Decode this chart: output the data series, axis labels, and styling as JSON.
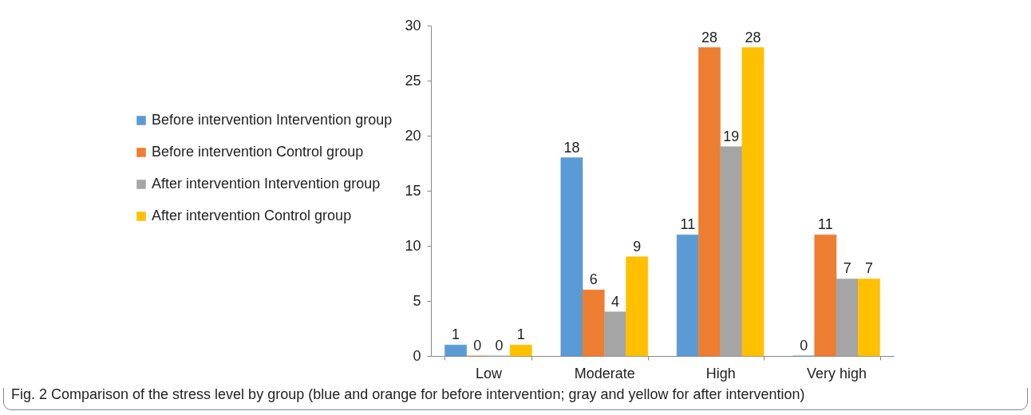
{
  "chart_data": {
    "type": "bar",
    "categories": [
      "Low",
      "Moderate",
      "High",
      "Very high"
    ],
    "series": [
      {
        "name": "Before intervention Intervention group",
        "color": "#5b9bd5",
        "values": [
          1,
          18,
          11,
          0
        ]
      },
      {
        "name": "Before intervention Control group",
        "color": "#ed7d31",
        "values": [
          0,
          6,
          28,
          11
        ]
      },
      {
        "name": "After intervention Intervention group",
        "color": "#a5a5a5",
        "values": [
          0,
          4,
          19,
          7
        ]
      },
      {
        "name": "After intervention Control group",
        "color": "#ffc000",
        "values": [
          1,
          9,
          28,
          7
        ]
      }
    ],
    "ylim": [
      0,
      30
    ],
    "yticks": [
      0,
      5,
      10,
      15,
      20,
      25,
      30
    ],
    "data_labels": true,
    "legend": "left",
    "grid": false,
    "annotations": [
      "Fig. 2  Comparison of the stress level by group (blue and orange for before intervention; gray and yellow for after intervention)"
    ]
  }
}
